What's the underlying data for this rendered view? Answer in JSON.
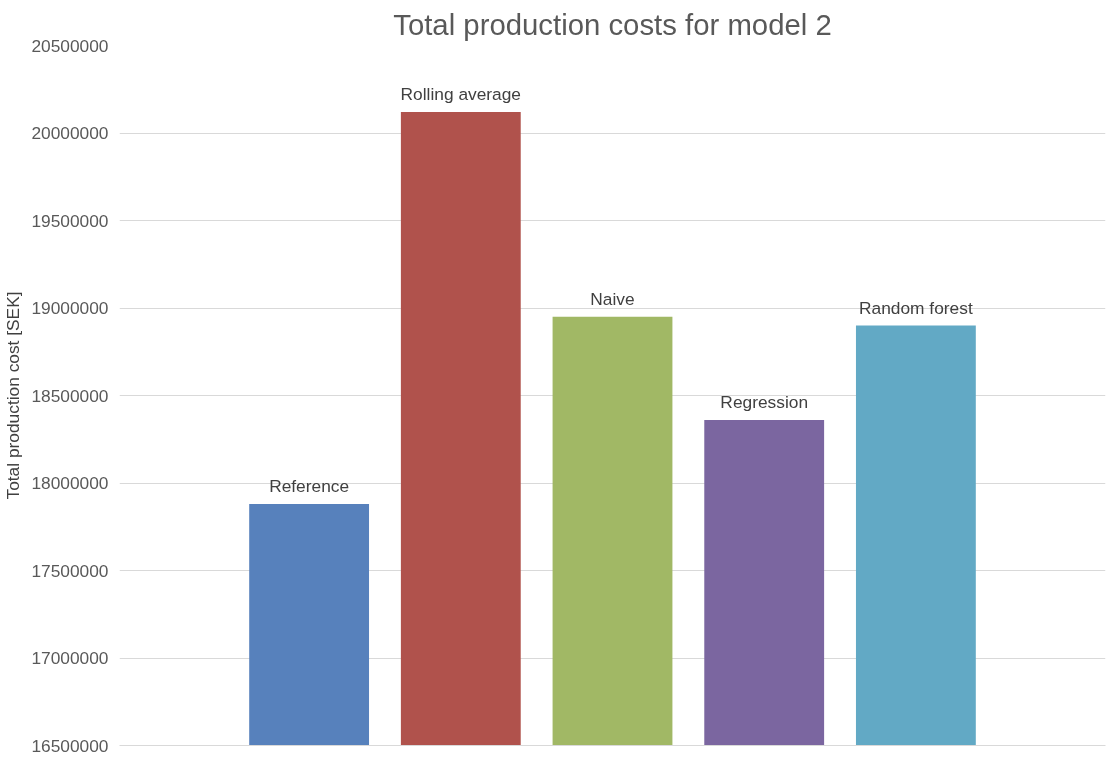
{
  "chart_data": {
    "type": "bar",
    "title": "Total production costs for model 2",
    "ylabel": "Total production cost [SEK]",
    "categories": [
      "Reference",
      "Rolling average",
      "Naive",
      "Regression",
      "Random forest"
    ],
    "values": [
      17880000,
      20120000,
      18950000,
      18360000,
      18900000
    ],
    "colors": [
      "#5781bc",
      "#b0524c",
      "#a1b865",
      "#7b66a0",
      "#62a9c5"
    ],
    "ylim": [
      16500000,
      20500000
    ],
    "yticks": [
      16500000,
      17000000,
      17500000,
      18000000,
      18500000,
      19000000,
      19500000,
      20000000,
      20500000
    ],
    "grid": "y",
    "tick_labels": "y"
  }
}
